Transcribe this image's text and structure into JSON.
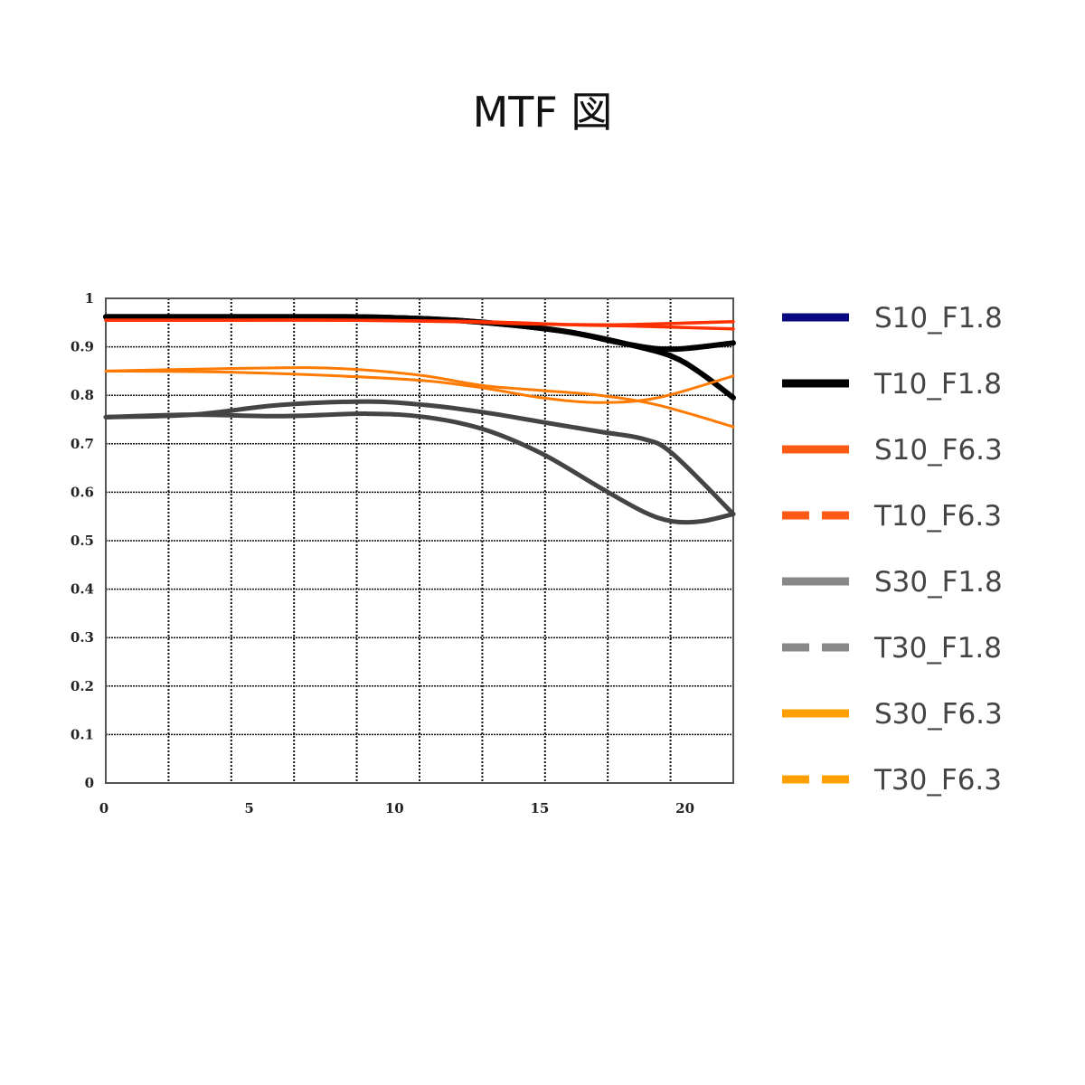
{
  "chart_data": {
    "type": "line",
    "title": "MTF 図",
    "xlabel": "",
    "ylabel": "",
    "xlim": [
      0,
      21.6
    ],
    "ylim": [
      0,
      1
    ],
    "x_ticks": [
      "0",
      "5",
      "10",
      "15",
      "20"
    ],
    "y_ticks": [
      "0",
      "0.1",
      "0.2",
      "0.3",
      "0.4",
      "0.5",
      "0.6",
      "0.7",
      "0.8",
      "0.9",
      "1"
    ],
    "grid": true,
    "legend_position": "right",
    "legend": [
      {
        "name": "S10_F1.8",
        "color": "#0a0a80",
        "dashed": false
      },
      {
        "name": "T10_F1.8",
        "color": "#000000",
        "dashed": false
      },
      {
        "name": "S10_F6.3",
        "color": "#ff5a14",
        "dashed": false
      },
      {
        "name": "T10_F6.3",
        "color": "#ff5a14",
        "dashed": true
      },
      {
        "name": "S30_F1.8",
        "color": "#888888",
        "dashed": false
      },
      {
        "name": "T30_F1.8",
        "color": "#888888",
        "dashed": true
      },
      {
        "name": "S30_F6.3",
        "color": "#ffa000",
        "dashed": false
      },
      {
        "name": "T30_F6.3",
        "color": "#ffa000",
        "dashed": true
      }
    ],
    "series": [
      {
        "name": "S10_F1.8",
        "color": "#000000",
        "width": 6,
        "x": [
          0,
          4,
          8,
          10,
          12,
          14,
          16,
          18,
          19.5,
          21.6
        ],
        "y": [
          0.962,
          0.962,
          0.962,
          0.96,
          0.955,
          0.945,
          0.93,
          0.905,
          0.895,
          0.908
        ]
      },
      {
        "name": "T10_F1.8",
        "color": "#000000",
        "width": 6,
        "x": [
          0,
          4,
          8,
          10,
          12,
          14,
          16,
          18,
          19.5,
          20.5,
          21.6
        ],
        "y": [
          0.962,
          0.962,
          0.962,
          0.96,
          0.955,
          0.945,
          0.93,
          0.905,
          0.88,
          0.845,
          0.795
        ]
      },
      {
        "name": "S10_F6.3",
        "color": "#ff3000",
        "width": 3.5,
        "x": [
          0,
          4,
          8,
          12,
          14,
          16,
          18,
          21.6
        ],
        "y": [
          0.955,
          0.955,
          0.955,
          0.953,
          0.95,
          0.946,
          0.946,
          0.952
        ]
      },
      {
        "name": "T10_F6.3",
        "color": "#ff3000",
        "width": 3.5,
        "x": [
          0,
          4,
          8,
          12,
          14,
          18,
          21.6
        ],
        "y": [
          0.955,
          0.955,
          0.955,
          0.952,
          0.948,
          0.943,
          0.937
        ]
      },
      {
        "name": "S30_F1.8",
        "color": "#444444",
        "width": 5,
        "x": [
          0,
          3,
          6,
          9,
          11,
          13,
          15,
          17,
          18.5,
          19.5,
          21.6
        ],
        "y": [
          0.755,
          0.76,
          0.78,
          0.787,
          0.78,
          0.765,
          0.745,
          0.725,
          0.71,
          0.68,
          0.555
        ]
      },
      {
        "name": "T30_F1.8",
        "color": "#444444",
        "width": 5,
        "x": [
          0,
          3,
          6,
          9,
          11,
          13,
          15,
          17,
          18.5,
          19.5,
          20.5,
          21.6
        ],
        "y": [
          0.755,
          0.76,
          0.757,
          0.762,
          0.755,
          0.73,
          0.68,
          0.61,
          0.56,
          0.54,
          0.54,
          0.555
        ]
      },
      {
        "name": "S30_F6.3",
        "color": "#ff7a00",
        "width": 3,
        "x": [
          0,
          4,
          7,
          9,
          11,
          13,
          15,
          17,
          19,
          21.6
        ],
        "y": [
          0.85,
          0.855,
          0.857,
          0.852,
          0.84,
          0.82,
          0.81,
          0.8,
          0.78,
          0.735
        ]
      },
      {
        "name": "T30_F6.3",
        "color": "#ff7a00",
        "width": 3,
        "x": [
          0,
          4,
          8,
          11,
          13,
          15,
          17,
          19,
          21.6
        ],
        "y": [
          0.85,
          0.848,
          0.84,
          0.83,
          0.815,
          0.795,
          0.785,
          0.795,
          0.84
        ]
      }
    ]
  }
}
